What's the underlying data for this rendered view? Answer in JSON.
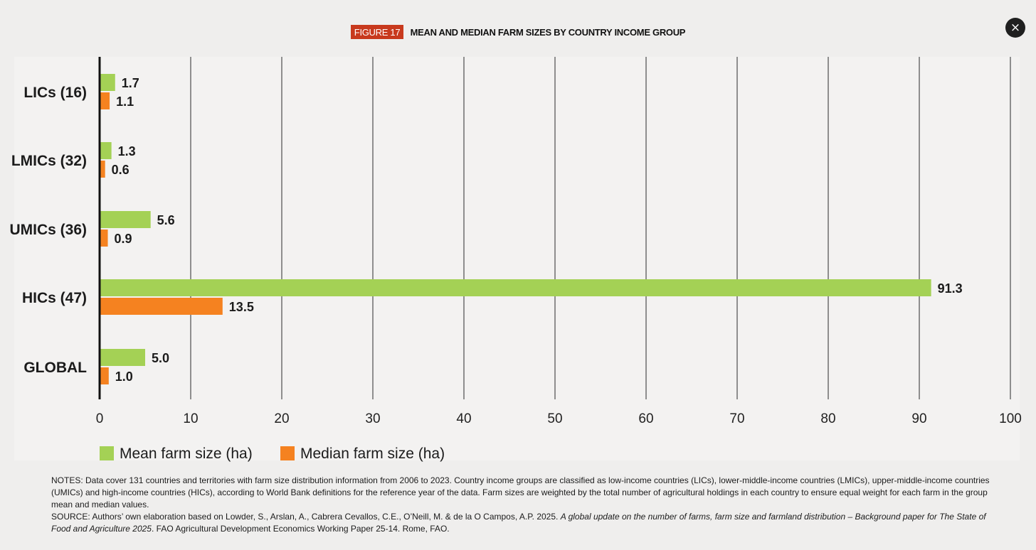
{
  "header": {
    "figure_label": "FIGURE 17",
    "title": "MEAN AND MEDIAN FARM SIZES BY COUNTRY INCOME GROUP"
  },
  "close_button": {
    "icon": "close-icon",
    "glyph": "×"
  },
  "colors": {
    "mean": "#a4d155",
    "median": "#f58220",
    "badge": "#c8391d",
    "gridline": "#2a2a2a"
  },
  "chart_data": {
    "type": "bar",
    "orientation": "horizontal",
    "categories": [
      "LICs (16)",
      "LMICs (32)",
      "UMICs (36)",
      "HICs (47)",
      "GLOBAL"
    ],
    "series": [
      {
        "name": "Mean farm size (ha)",
        "values": [
          1.7,
          1.3,
          5.6,
          91.3,
          5.0
        ]
      },
      {
        "name": "Median farm size (ha)",
        "values": [
          1.1,
          0.6,
          0.9,
          13.5,
          1.0
        ]
      }
    ],
    "data_labels": {
      "mean": [
        "1.7",
        "1.3",
        "5.6",
        "91.3",
        "5.0"
      ],
      "median": [
        "1.1",
        "0.6",
        "0.9",
        "13.5",
        "1.0"
      ]
    },
    "xlim": [
      0,
      100
    ],
    "xticks": [
      0,
      10,
      20,
      30,
      40,
      50,
      60,
      70,
      80,
      90,
      100
    ],
    "grid": "vertical",
    "legend": "bottom-left"
  },
  "notes": {
    "notes_text": "NOTES: Data cover 131 countries and territories with farm size distribution information from 2006 to 2023. Country income groups are classified as low-income countries (LICs), lower-middle-income countries (LMICs), upper-middle-income countries (UMICs) and high-income countries (HICs), according to World Bank definitions for the reference year of the data. Farm sizes are weighted by the total number of agricultural holdings in each country to ensure equal weight for each farm in the group mean and median values.",
    "source_prefix": "SOURCE: Authors’ own elaboration based on Lowder, S., Arslan, A., Cabrera Cevallos, C.E., O’Neill, M. & de la O Campos, A.P. 2025. ",
    "source_italic": "A global update on the number of farms, farm size and farmland distribution – Background paper for The State of Food and Agriculture 2025",
    "source_suffix": ". FAO Agricultural Development Economics Working Paper 25-14. Rome, FAO."
  }
}
